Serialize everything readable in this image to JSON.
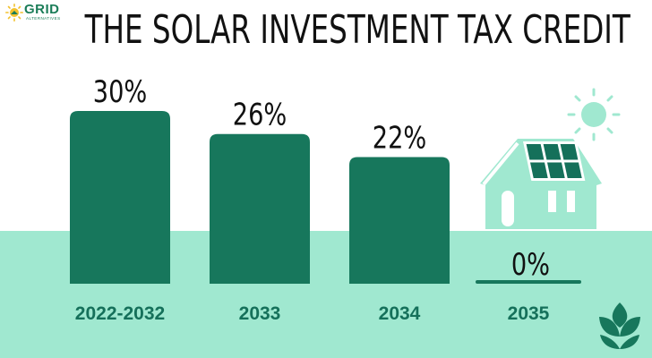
{
  "brand": {
    "logo_name": "GRID",
    "logo_subtext": "ALTERNATIVES"
  },
  "colors": {
    "bar": "#17775c",
    "ground": "#a0e8d0",
    "house": "#a0e8d0",
    "panel": "#15705a",
    "sun": "#a0e8d0",
    "text": "#111111",
    "category_label": "#15705a"
  },
  "icons": [
    "sun-icon",
    "house-with-solar-panels-icon",
    "leaf-icon"
  ],
  "chart_data": {
    "type": "bar",
    "title": "THE SOLAR INVESTMENT TAX CREDIT",
    "categories": [
      "2022-2032",
      "2033",
      "2034",
      "2035"
    ],
    "values": [
      30,
      26,
      22,
      0
    ],
    "value_labels": [
      "30%",
      "26%",
      "22%",
      "0%"
    ],
    "unit": "%",
    "ylim": [
      0,
      30
    ],
    "xlabel": "",
    "ylabel": "",
    "grid": false,
    "legend": "none"
  }
}
